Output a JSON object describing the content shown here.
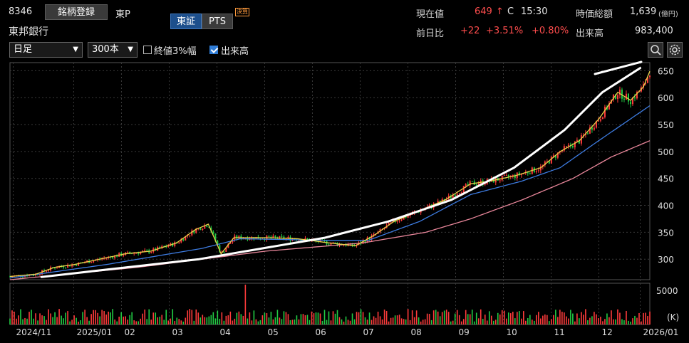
{
  "header": {
    "code": "8346",
    "register_label": "銘柄登録",
    "market": "東P",
    "company": "東邦銀行",
    "exchange_tab": "東証",
    "pts_tab": "PTS",
    "earnings_badge": "決算"
  },
  "quote": {
    "price_label": "現在値",
    "price": "649",
    "price_arrow": "↑",
    "price_flag": "C",
    "time": "15:30",
    "mcap_label": "時価総額",
    "mcap": "1,639",
    "mcap_unit": "(億円)",
    "change_label": "前日比",
    "change": "+22",
    "change_pct": "+3.51%",
    "change_pct2": "+0.80%",
    "volume_label": "出来高",
    "volume": "983,400"
  },
  "controls": {
    "period": "日足",
    "bars": "300本",
    "band_label": "終値3%幅",
    "band_checked": false,
    "volume_label": "出来高",
    "volume_checked": true
  },
  "icons": {
    "zoom": "zoom-icon",
    "settings": "gear-icon"
  },
  "colors": {
    "up": "#ff3b3b",
    "down": "#22cc44",
    "ma_short": "#e8d24a",
    "ma_mid": "#3d7be0",
    "ma_long": "#e8869a",
    "trend": "#ffffff"
  },
  "chart_data": {
    "type": "line",
    "ylim": [
      262,
      665
    ],
    "yticks": [
      300,
      350,
      400,
      450,
      500,
      550,
      600,
      650
    ],
    "volume_ylim_label": "5000",
    "volume_unit": "(K)",
    "x_tick_labels": [
      "2024/11",
      "2025/01",
      "02",
      "03",
      "04",
      "05",
      "06",
      "07",
      "08",
      "09",
      "10",
      "11",
      "12",
      "2026/01"
    ],
    "price_series": [
      {
        "t": 0,
        "v": 268
      },
      {
        "t": 0.04,
        "v": 272
      },
      {
        "t": 0.07,
        "v": 285
      },
      {
        "t": 0.1,
        "v": 290
      },
      {
        "t": 0.14,
        "v": 300
      },
      {
        "t": 0.18,
        "v": 310
      },
      {
        "t": 0.22,
        "v": 315
      },
      {
        "t": 0.26,
        "v": 330
      },
      {
        "t": 0.29,
        "v": 355
      },
      {
        "t": 0.31,
        "v": 365
      },
      {
        "t": 0.33,
        "v": 310
      },
      {
        "t": 0.35,
        "v": 340
      },
      {
        "t": 0.4,
        "v": 340
      },
      {
        "t": 0.45,
        "v": 338
      },
      {
        "t": 0.5,
        "v": 330
      },
      {
        "t": 0.54,
        "v": 325
      },
      {
        "t": 0.57,
        "v": 345
      },
      {
        "t": 0.6,
        "v": 370
      },
      {
        "t": 0.64,
        "v": 390
      },
      {
        "t": 0.68,
        "v": 410
      },
      {
        "t": 0.72,
        "v": 440
      },
      {
        "t": 0.75,
        "v": 445
      },
      {
        "t": 0.79,
        "v": 455
      },
      {
        "t": 0.83,
        "v": 470
      },
      {
        "t": 0.86,
        "v": 500
      },
      {
        "t": 0.89,
        "v": 520
      },
      {
        "t": 0.92,
        "v": 560
      },
      {
        "t": 0.95,
        "v": 610
      },
      {
        "t": 0.97,
        "v": 595
      },
      {
        "t": 0.99,
        "v": 620
      },
      {
        "t": 1.0,
        "v": 649
      }
    ],
    "ma_mid": [
      {
        "t": 0,
        "v": 265
      },
      {
        "t": 0.15,
        "v": 290
      },
      {
        "t": 0.3,
        "v": 320
      },
      {
        "t": 0.36,
        "v": 338
      },
      {
        "t": 0.5,
        "v": 335
      },
      {
        "t": 0.56,
        "v": 335
      },
      {
        "t": 0.64,
        "v": 370
      },
      {
        "t": 0.72,
        "v": 420
      },
      {
        "t": 0.8,
        "v": 445
      },
      {
        "t": 0.86,
        "v": 470
      },
      {
        "t": 0.92,
        "v": 520
      },
      {
        "t": 1.0,
        "v": 585
      }
    ],
    "ma_long": [
      {
        "t": 0,
        "v": 262
      },
      {
        "t": 0.2,
        "v": 285
      },
      {
        "t": 0.4,
        "v": 315
      },
      {
        "t": 0.55,
        "v": 330
      },
      {
        "t": 0.65,
        "v": 350
      },
      {
        "t": 0.72,
        "v": 375
      },
      {
        "t": 0.8,
        "v": 410
      },
      {
        "t": 0.88,
        "v": 450
      },
      {
        "t": 0.94,
        "v": 490
      },
      {
        "t": 1.0,
        "v": 520
      }
    ],
    "trend_line": [
      {
        "t": 0.05,
        "v": 267
      },
      {
        "t": 0.3,
        "v": 300
      },
      {
        "t": 0.5,
        "v": 340
      },
      {
        "t": 0.6,
        "v": 370
      },
      {
        "t": 0.7,
        "v": 410
      },
      {
        "t": 0.8,
        "v": 470
      },
      {
        "t": 0.88,
        "v": 540
      },
      {
        "t": 0.94,
        "v": 610
      },
      {
        "t": 1.0,
        "v": 655
      }
    ]
  }
}
